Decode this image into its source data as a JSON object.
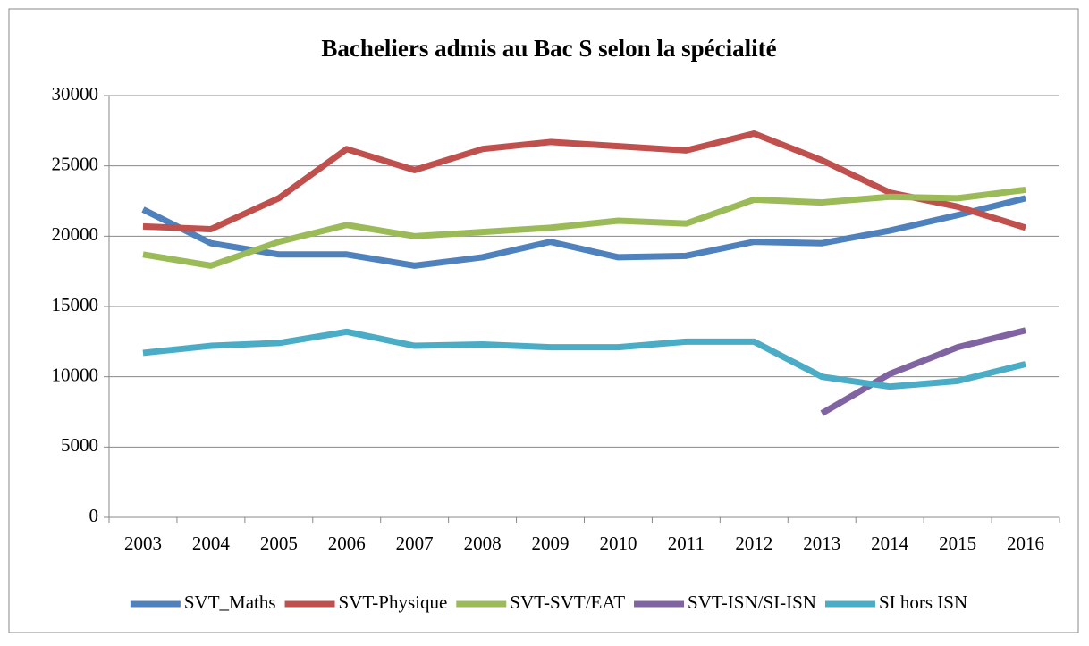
{
  "chart_data": {
    "type": "line",
    "title": "Bacheliers admis au Bac S selon la spécialité",
    "categories": [
      "2003",
      "2004",
      "2005",
      "2006",
      "2007",
      "2008",
      "2009",
      "2010",
      "2011",
      "2012",
      "2013",
      "2014",
      "2015",
      "2016"
    ],
    "series": [
      {
        "name": "SVT_Maths",
        "color": "#4f81bd",
        "values": [
          21900,
          19500,
          18700,
          18700,
          17900,
          18500,
          19600,
          18500,
          18600,
          19600,
          19500,
          20400,
          21500,
          22700
        ]
      },
      {
        "name": "SVT-Physique",
        "color": "#c0504d",
        "values": [
          20700,
          20500,
          22700,
          26200,
          24700,
          26200,
          26700,
          26400,
          26100,
          27300,
          25400,
          23100,
          22100,
          20600
        ]
      },
      {
        "name": "SVT-SVT/EAT",
        "color": "#9bbb59",
        "values": [
          18700,
          17900,
          19600,
          20800,
          20000,
          20300,
          20600,
          21100,
          20900,
          22600,
          22400,
          22800,
          22700,
          23300
        ]
      },
      {
        "name": "SVT-ISN/SI-ISN",
        "color": "#8064a2",
        "values": [
          null,
          null,
          null,
          null,
          null,
          null,
          null,
          null,
          null,
          null,
          7400,
          10200,
          12100,
          13300
        ]
      },
      {
        "name": "SI hors ISN",
        "color": "#4bacc6",
        "values": [
          11700,
          12200,
          12400,
          13200,
          12200,
          12300,
          12100,
          12100,
          12500,
          12500,
          10000,
          9300,
          9700,
          10900
        ]
      }
    ],
    "ylim": [
      0,
      30000
    ],
    "yticks": [
      0,
      5000,
      10000,
      15000,
      20000,
      25000,
      30000
    ],
    "grid": true,
    "legend": "bottom"
  }
}
